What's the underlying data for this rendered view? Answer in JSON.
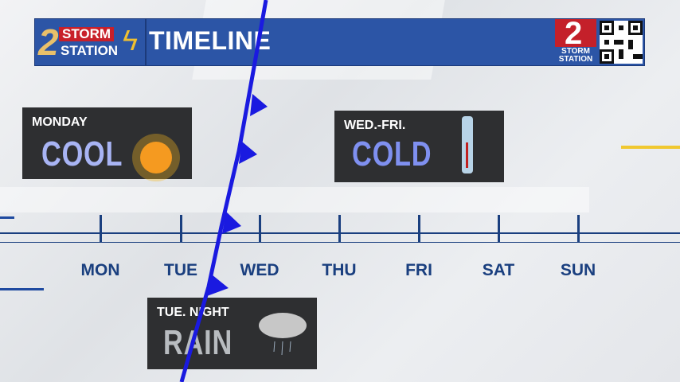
{
  "header": {
    "logo_number": "2",
    "logo_storm": "STORM",
    "logo_station": "STATION",
    "title": "TIMELINE",
    "corner_logo_number": "2",
    "corner_logo_text": "STORM STATION",
    "qr_icon": "qr-code-icon"
  },
  "cards": [
    {
      "label": "MONDAY",
      "condition": "COOL",
      "icon": "sun-icon"
    },
    {
      "label": "WED.-FRI.",
      "condition": "COLD",
      "icon": "thermometer-icon"
    },
    {
      "label": "TUE. NIGHT",
      "condition": "RAIN",
      "icon": "rain-cloud-icon"
    }
  ],
  "timeline": {
    "days": [
      "MON",
      "TUE",
      "WED",
      "THU",
      "FRI",
      "SAT",
      "SUN"
    ]
  },
  "colors": {
    "header": "#2c55a6",
    "timeline": "#1a3f7f",
    "front": "#1a1ae0",
    "accent": "#f0c830"
  }
}
